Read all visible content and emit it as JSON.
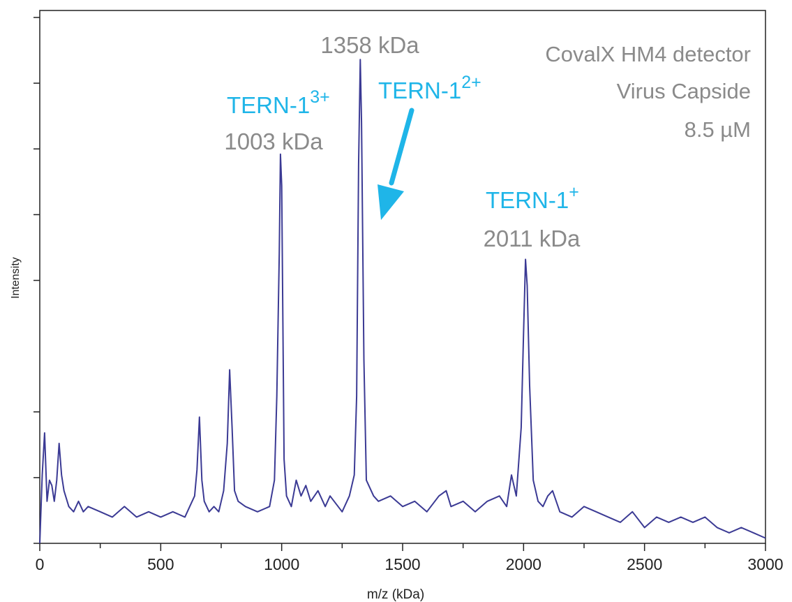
{
  "chart_data": {
    "type": "line",
    "title": "",
    "xlabel": "m/z (kDa)",
    "ylabel": "Intensity",
    "xlim": [
      0,
      3000
    ],
    "ylim": [
      0,
      100
    ],
    "x_ticks": [
      "0",
      "500",
      "1000",
      "1500",
      "2000",
      "2500",
      "3000"
    ],
    "y_tick_labels": [],
    "grid": false,
    "legend": "none",
    "series": [
      {
        "color": "#3b3a94",
        "x": [
          0,
          10,
          20,
          30,
          40,
          50,
          60,
          70,
          80,
          90,
          100,
          120,
          140,
          160,
          180,
          200,
          250,
          300,
          350,
          400,
          450,
          500,
          550,
          600,
          620,
          640,
          650,
          660,
          670,
          680,
          700,
          720,
          740,
          760,
          775,
          785,
          795,
          805,
          820,
          850,
          900,
          950,
          970,
          980,
          990,
          995,
          1000,
          1005,
          1010,
          1020,
          1040,
          1060,
          1080,
          1100,
          1120,
          1150,
          1180,
          1200,
          1250,
          1280,
          1300,
          1310,
          1318,
          1325,
          1330,
          1340,
          1350,
          1380,
          1400,
          1450,
          1500,
          1550,
          1600,
          1650,
          1680,
          1700,
          1750,
          1800,
          1850,
          1900,
          1930,
          1950,
          1970,
          1990,
          2000,
          2008,
          2015,
          2025,
          2040,
          2060,
          2080,
          2100,
          2120,
          2150,
          2200,
          2250,
          2300,
          2350,
          2400,
          2450,
          2500,
          2550,
          2600,
          2650,
          2700,
          2750,
          2800,
          2850,
          2900,
          2950,
          3000
        ],
        "y": [
          0,
          13,
          21,
          8,
          12,
          11,
          8,
          12,
          19,
          13,
          10,
          7,
          6,
          8,
          6,
          7,
          6,
          5,
          7,
          5,
          6,
          5,
          6,
          5,
          7,
          9,
          14,
          24,
          12,
          8,
          6,
          7,
          6,
          10,
          19,
          33,
          22,
          10,
          8,
          7,
          6,
          7,
          12,
          28,
          55,
          74,
          68,
          42,
          16,
          9,
          7,
          12,
          9,
          11,
          8,
          10,
          7,
          9,
          6,
          9,
          13,
          28,
          72,
          92,
          80,
          35,
          12,
          9,
          8,
          9,
          7,
          8,
          6,
          9,
          10,
          7,
          8,
          6,
          8,
          9,
          7,
          13,
          9,
          22,
          40,
          54,
          49,
          30,
          12,
          8,
          7,
          9,
          10,
          6,
          5,
          7,
          6,
          5,
          4,
          6,
          3,
          5,
          4,
          5,
          4,
          5,
          3,
          2,
          3,
          2,
          1
        ]
      }
    ],
    "annotations": [
      {
        "x": 1003,
        "y_rel": 94,
        "text": "1003 kDa",
        "color": "gray"
      },
      {
        "x": 1358,
        "y_rel": 114,
        "text": "1358 kDa",
        "color": "gray"
      },
      {
        "x": 2011,
        "y_rel": 56,
        "text": "2011 kDa",
        "color": "gray"
      }
    ],
    "species_labels": [
      {
        "base": "TERN-1",
        "charge": "3+"
      },
      {
        "base": "TERN-1",
        "charge": "2+"
      },
      {
        "base": "TERN-1",
        "charge": "+"
      }
    ],
    "info_lines": [
      "CovalX HM4 detector",
      "Virus Capside",
      "8.5 µM"
    ],
    "colors": {
      "line": "#3b3a94",
      "label_gray": "#8a8a8a",
      "label_cyan": "#1fb5e8",
      "axis": "#222222"
    }
  }
}
